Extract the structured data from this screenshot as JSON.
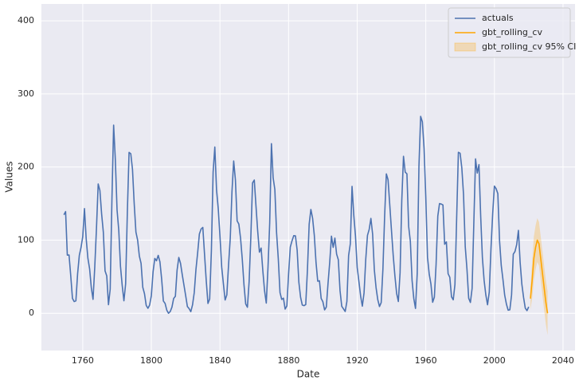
{
  "chart_data": {
    "type": "line",
    "xlabel": "Date",
    "ylabel": "Values",
    "xlim": [
      1735.9,
      2047
    ],
    "ylim": [
      -51,
      423
    ],
    "xticks": [
      1760,
      1800,
      1840,
      1880,
      1920,
      1960,
      2000,
      2040
    ],
    "yticks": [
      0,
      100,
      200,
      300,
      400
    ],
    "grid": true,
    "legend": "upper right",
    "series": [
      {
        "name": "actuals",
        "color": "#4c72b0",
        "kind": "line",
        "x": [
          1749,
          1750,
          1751,
          1752,
          1753,
          1754,
          1755,
          1756,
          1757,
          1758,
          1759,
          1760,
          1761,
          1762,
          1763,
          1764,
          1765,
          1766,
          1767,
          1768,
          1769,
          1770,
          1771,
          1772,
          1773,
          1774,
          1775,
          1776,
          1777,
          1778,
          1779,
          1780,
          1781,
          1782,
          1783,
          1784,
          1785,
          1786,
          1787,
          1788,
          1789,
          1790,
          1791,
          1792,
          1793,
          1794,
          1795,
          1796,
          1797,
          1798,
          1799,
          1800,
          1801,
          1802,
          1803,
          1804,
          1805,
          1806,
          1807,
          1808,
          1809,
          1810,
          1811,
          1812,
          1813,
          1814,
          1815,
          1816,
          1817,
          1818,
          1819,
          1820,
          1821,
          1822,
          1823,
          1824,
          1825,
          1826,
          1827,
          1828,
          1829,
          1830,
          1831,
          1832,
          1833,
          1834,
          1835,
          1836,
          1837,
          1838,
          1839,
          1840,
          1841,
          1842,
          1843,
          1844,
          1845,
          1846,
          1847,
          1848,
          1849,
          1850,
          1851,
          1852,
          1853,
          1854,
          1855,
          1856,
          1857,
          1858,
          1859,
          1860,
          1861,
          1862,
          1863,
          1864,
          1865,
          1866,
          1867,
          1868,
          1869,
          1870,
          1871,
          1872,
          1873,
          1874,
          1875,
          1876,
          1877,
          1878,
          1879,
          1880,
          1881,
          1882,
          1883,
          1884,
          1885,
          1886,
          1887,
          1888,
          1889,
          1890,
          1891,
          1892,
          1893,
          1894,
          1895,
          1896,
          1897,
          1898,
          1899,
          1900,
          1901,
          1902,
          1903,
          1904,
          1905,
          1906,
          1907,
          1908,
          1909,
          1910,
          1911,
          1912,
          1913,
          1914,
          1915,
          1916,
          1917,
          1918,
          1919,
          1920,
          1921,
          1922,
          1923,
          1924,
          1925,
          1926,
          1927,
          1928,
          1929,
          1930,
          1931,
          1932,
          1933,
          1934,
          1935,
          1936,
          1937,
          1938,
          1939,
          1940,
          1941,
          1942,
          1943,
          1944,
          1945,
          1946,
          1947,
          1948,
          1949,
          1950,
          1951,
          1952,
          1953,
          1954,
          1955,
          1956,
          1957,
          1958,
          1959,
          1960,
          1961,
          1962,
          1963,
          1964,
          1965,
          1966,
          1967,
          1968,
          1969,
          1970,
          1971,
          1972,
          1973,
          1974,
          1975,
          1976,
          1977,
          1978,
          1979,
          1980,
          1981,
          1982,
          1983,
          1984,
          1985,
          1986,
          1987,
          1988,
          1989,
          1990,
          1991,
          1992,
          1993,
          1994,
          1995,
          1996,
          1997,
          1998,
          1999,
          2000,
          2001,
          2002,
          2003,
          2004,
          2005,
          2006,
          2007,
          2008,
          2009,
          2010,
          2011,
          2012,
          2013,
          2014,
          2015,
          2016,
          2017,
          2018,
          2019,
          2020
        ],
        "values": [
          134.7,
          139.0,
          79.5,
          79.7,
          51.2,
          20.3,
          16.0,
          17.0,
          54.0,
          79.3,
          90.0,
          104.8,
          143.2,
          102.0,
          75.2,
          60.7,
          34.8,
          19.0,
          63.0,
          116.3,
          176.8,
          168.0,
          136.0,
          110.8,
          58.0,
          51.0,
          11.7,
          33.0,
          154.2,
          257.3,
          209.8,
          141.3,
          113.5,
          64.2,
          38.0,
          17.0,
          40.2,
          138.2,
          220.0,
          218.2,
          196.8,
          149.8,
          111.0,
          100.0,
          78.2,
          68.3,
          35.5,
          26.7,
          10.7,
          6.8,
          11.3,
          24.2,
          56.7,
          75.0,
          71.8,
          79.2,
          70.3,
          46.8,
          16.8,
          13.5,
          4.2,
          0.0,
          2.3,
          8.3,
          20.3,
          23.2,
          59.0,
          76.3,
          68.3,
          52.9,
          38.5,
          24.2,
          9.2,
          6.3,
          2.2,
          11.4,
          28.2,
          59.9,
          83.0,
          108.5,
          115.2,
          117.4,
          80.8,
          44.3,
          13.4,
          19.5,
          85.8,
          192.7,
          227.3,
          168.7,
          143.0,
          105.5,
          63.3,
          40.3,
          18.1,
          25.1,
          65.8,
          102.7,
          166.3,
          208.3,
          182.5,
          126.3,
          122.0,
          102.7,
          74.1,
          39.0,
          12.7,
          8.2,
          43.4,
          104.4,
          178.3,
          182.2,
          146.6,
          112.1,
          83.5,
          89.2,
          57.8,
          30.7,
          13.9,
          62.8,
          123.6,
          232.0,
          185.3,
          169.2,
          110.1,
          74.5,
          28.3,
          18.9,
          20.7,
          5.7,
          10.0,
          53.7,
          90.5,
          99.0,
          106.1,
          105.8,
          86.3,
          42.4,
          21.8,
          11.2,
          10.4,
          11.8,
          59.5,
          121.7,
          142.0,
          130.0,
          106.6,
          69.4,
          43.8,
          44.4,
          20.2,
          15.7,
          4.6,
          8.5,
          40.8,
          70.1,
          105.5,
          90.1,
          102.8,
          80.9,
          73.2,
          30.9,
          9.5,
          6.0,
          2.4,
          16.1,
          79.0,
          95.0,
          173.6,
          134.6,
          105.7,
          62.7,
          43.5,
          23.7,
          9.7,
          27.9,
          74.0,
          106.5,
          114.7,
          129.7,
          108.2,
          59.4,
          35.1,
          18.6,
          9.2,
          14.6,
          60.2,
          132.8,
          190.6,
          182.6,
          148.0,
          113.0,
          79.2,
          50.8,
          27.1,
          16.1,
          55.3,
          154.3,
          214.7,
          193.0,
          190.7,
          118.9,
          98.3,
          45.0,
          20.1,
          6.6,
          54.2,
          200.7,
          269.3,
          261.7,
          225.1,
          159.0,
          76.4,
          53.4,
          39.9,
          15.0,
          22.0,
          66.8,
          132.9,
          150.0,
          149.4,
          148.0,
          94.4,
          97.6,
          54.1,
          49.2,
          22.5,
          18.4,
          39.3,
          131.0,
          220.1,
          218.9,
          198.9,
          162.4,
          91.0,
          60.5,
          20.6,
          14.8,
          33.9,
          123.0,
          211.1,
          191.8,
          203.3,
          133.0,
          76.1,
          44.9,
          25.1,
          11.6,
          28.9,
          88.3,
          136.3,
          173.9,
          170.4,
          163.6,
          99.3,
          65.3,
          45.8,
          24.7,
          12.6,
          4.2,
          4.8,
          24.9,
          80.8,
          84.5,
          94.0,
          113.3,
          69.8,
          39.8,
          21.7,
          7.0,
          3.6,
          8.8
        ]
      },
      {
        "name": "gbt_rolling_cv",
        "color": "#ffa500",
        "kind": "line",
        "x": [
          2021,
          2022,
          2023,
          2024,
          2025,
          2026,
          2027,
          2028,
          2029,
          2030,
          2031
        ],
        "values": [
          20,
          45,
          75,
          90,
          100,
          95,
          75,
          55,
          35,
          15,
          0
        ]
      },
      {
        "name": "gbt_rolling_cv 95% CI",
        "color": "#ffa500",
        "kind": "band",
        "x": [
          2021,
          2022,
          2023,
          2024,
          2025,
          2026,
          2027,
          2028,
          2029,
          2030,
          2031
        ],
        "lower": [
          5,
          20,
          45,
          60,
          70,
          65,
          45,
          25,
          5,
          -15,
          -30
        ],
        "upper": [
          35,
          70,
          105,
          120,
          130,
          125,
          105,
          85,
          65,
          45,
          30
        ]
      }
    ]
  }
}
